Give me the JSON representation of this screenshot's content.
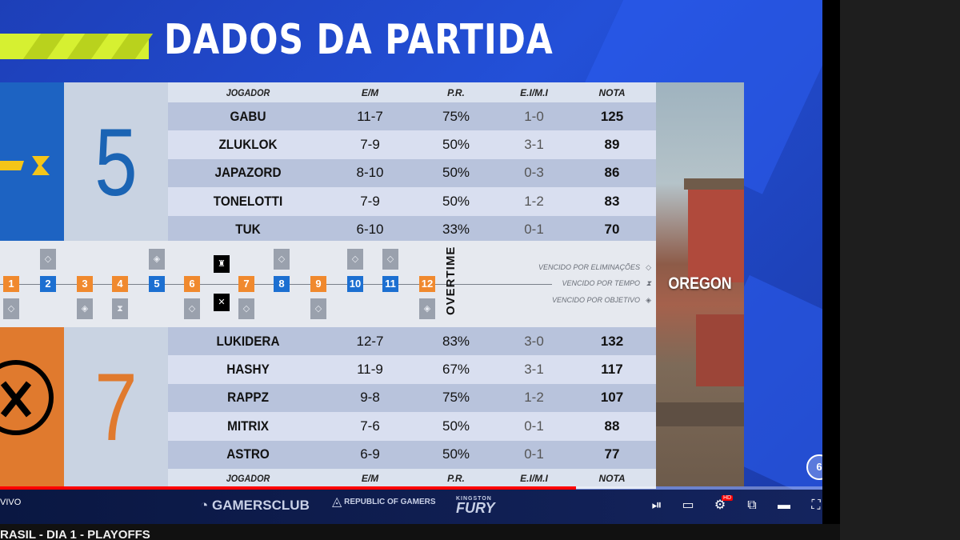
{
  "header": {
    "title": "DADOS DA PARTIDA"
  },
  "columns": {
    "player": "JOGADOR",
    "em": "E/M",
    "pr": "P.R.",
    "ei": "E.I/M.I",
    "nota": "NOTA"
  },
  "team1": {
    "score": "5",
    "color": "#1d63c2",
    "players": [
      {
        "name": "GABU",
        "em": "11-7",
        "pr": "75%",
        "ei": "1-0",
        "nota": "125"
      },
      {
        "name": "ZLUKLOK",
        "em": "7-9",
        "pr": "50%",
        "ei": "3-1",
        "nota": "89"
      },
      {
        "name": "JAPAZORD",
        "em": "8-10",
        "pr": "50%",
        "ei": "0-3",
        "nota": "86"
      },
      {
        "name": "TONELOTTI",
        "em": "7-9",
        "pr": "50%",
        "ei": "1-2",
        "nota": "83"
      },
      {
        "name": "TUK",
        "em": "6-10",
        "pr": "33%",
        "ei": "0-1",
        "nota": "70"
      }
    ]
  },
  "team2": {
    "score": "7",
    "color": "#e07a2e",
    "players": [
      {
        "name": "LUKIDERA",
        "em": "12-7",
        "pr": "83%",
        "ei": "3-0",
        "nota": "132"
      },
      {
        "name": "HASHY",
        "em": "11-9",
        "pr": "67%",
        "ei": "3-1",
        "nota": "117"
      },
      {
        "name": "RAPPZ",
        "em": "9-8",
        "pr": "75%",
        "ei": "1-2",
        "nota": "107"
      },
      {
        "name": "MITRIX",
        "em": "7-6",
        "pr": "50%",
        "ei": "0-1",
        "nota": "88"
      },
      {
        "name": "ASTRO",
        "em": "6-9",
        "pr": "50%",
        "ei": "0-1",
        "nota": "77"
      }
    ]
  },
  "timeline": {
    "rounds": [
      {
        "n": "1",
        "winner": "orange"
      },
      {
        "n": "2",
        "winner": "blue"
      },
      {
        "n": "3",
        "winner": "orange"
      },
      {
        "n": "4",
        "winner": "orange"
      },
      {
        "n": "5",
        "winner": "blue"
      },
      {
        "n": "6",
        "winner": "orange"
      },
      {
        "n": "7",
        "winner": "orange"
      },
      {
        "n": "8",
        "winner": "blue"
      },
      {
        "n": "9",
        "winner": "orange"
      },
      {
        "n": "10",
        "winner": "blue"
      },
      {
        "n": "11",
        "winner": "blue"
      },
      {
        "n": "12",
        "winner": "orange"
      }
    ],
    "overtime": "OVERTIME",
    "legend": {
      "elim": "VENCIDO POR ELIMINAÇÕES",
      "time": "VENCIDO POR TEMPO",
      "objective": "VENCIDO POR OBJETIVO"
    }
  },
  "map": {
    "name": "OREGON"
  },
  "sponsors": {
    "gamersclub": "GAMERSCLUB",
    "rog": "REPUBLIC OF GAMERS",
    "fury": "FURY",
    "fury_brand": "KINGSTON"
  },
  "player": {
    "live_label": "VIVO",
    "video_title": "RASIL - DIA 1 - PLAYOFFS",
    "progress": 0.7,
    "hd_badge": "HD"
  }
}
